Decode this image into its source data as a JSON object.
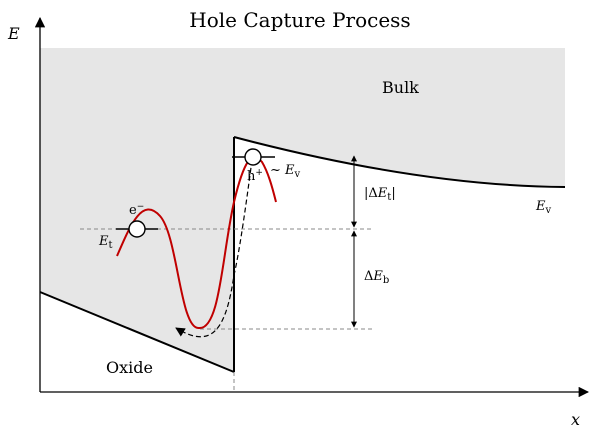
{
  "title": "Hole Capture Process",
  "axes": {
    "y_label": "E",
    "x_label": "x"
  },
  "regions": {
    "bulk_label": "Bulk",
    "oxide_label": "Oxide"
  },
  "labels": {
    "valence_band": "E",
    "valence_band_sub": "v",
    "trap_level": "E",
    "trap_level_sub": "t",
    "electron": "e",
    "electron_sup": "−",
    "hole": "h",
    "hole_sup": "+",
    "near_ev_prefix": "~ ",
    "near_ev": "E",
    "near_ev_sub": "v",
    "delta_et_pre": "|Δ",
    "delta_et_e": "E",
    "delta_et_sub": "t",
    "delta_et_post": "|",
    "delta_eb_pre": "Δ",
    "delta_eb_e": "E",
    "delta_eb_sub": "b"
  },
  "colors": {
    "shade": "#e6e6e6",
    "potential_curve": "#c00000",
    "line": "#000000",
    "dashed": "#888888"
  }
}
